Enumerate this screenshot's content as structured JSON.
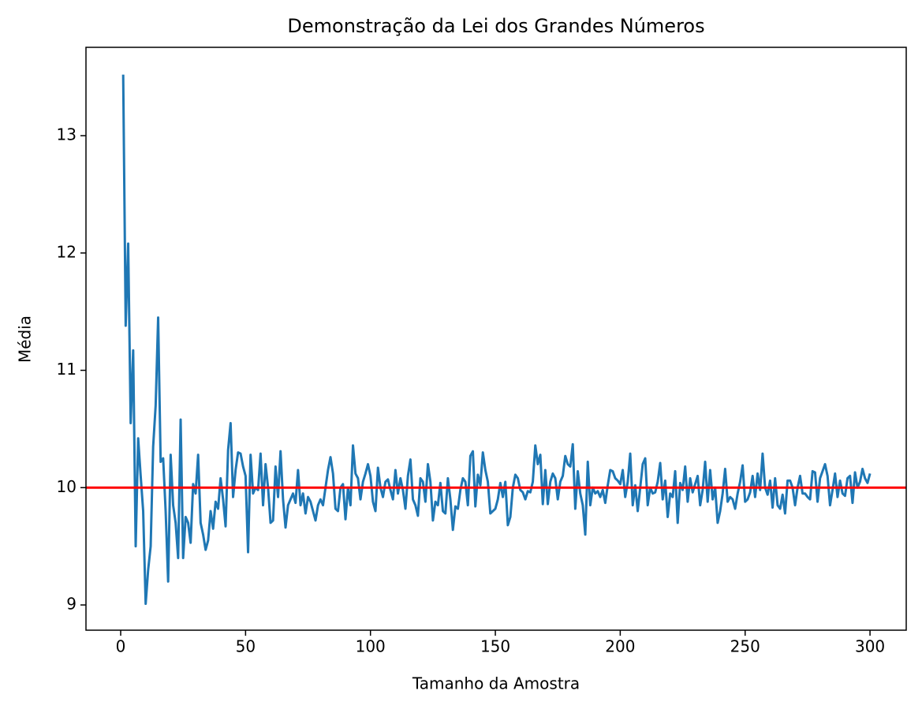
{
  "chart_data": {
    "type": "line",
    "title": "Demonstração da Lei dos Grandes Números",
    "x_label": "Tamanho da Amostra",
    "y_label": "Média",
    "x": [
      1,
      2,
      3,
      4,
      5,
      6,
      7,
      8,
      9,
      10,
      11,
      12,
      13,
      14,
      15,
      16,
      17,
      18,
      19,
      20,
      21,
      22,
      23,
      24,
      25,
      26,
      27,
      28,
      29,
      30,
      31,
      32,
      33,
      34,
      35,
      36,
      37,
      38,
      39,
      40,
      41,
      42,
      43,
      44,
      45,
      46,
      47,
      48,
      49,
      50,
      51,
      52,
      53,
      54,
      55,
      56,
      57,
      58,
      59,
      60,
      61,
      62,
      63,
      64,
      65,
      66,
      67,
      68,
      69,
      70,
      71,
      72,
      73,
      74,
      75,
      76,
      77,
      78,
      79,
      80,
      81,
      82,
      83,
      84,
      85,
      86,
      87,
      88,
      89,
      90,
      91,
      92,
      93,
      94,
      95,
      96,
      97,
      98,
      99,
      100,
      101,
      102,
      103,
      104,
      105,
      106,
      107,
      108,
      109,
      110,
      111,
      112,
      113,
      114,
      115,
      116,
      117,
      118,
      119,
      120,
      121,
      122,
      123,
      124,
      125,
      126,
      127,
      128,
      129,
      130,
      131,
      132,
      133,
      134,
      135,
      136,
      137,
      138,
      139,
      140,
      141,
      142,
      143,
      144,
      145,
      146,
      147,
      148,
      149,
      150,
      151,
      152,
      153,
      154,
      155,
      156,
      157,
      158,
      159,
      160,
      161,
      162,
      163,
      164,
      165,
      166,
      167,
      168,
      169,
      170,
      171,
      172,
      173,
      174,
      175,
      176,
      177,
      178,
      179,
      180,
      181,
      182,
      183,
      184,
      185,
      186,
      187,
      188,
      189,
      190,
      191,
      192,
      193,
      194,
      195,
      196,
      197,
      198,
      199,
      200,
      201,
      202,
      203,
      204,
      205,
      206,
      207,
      208,
      209,
      210,
      211,
      212,
      213,
      214,
      215,
      216,
      217,
      218,
      219,
      220,
      221,
      222,
      223,
      224,
      225,
      226,
      227,
      228,
      229,
      230,
      231,
      232,
      233,
      234,
      235,
      236,
      237,
      238,
      239,
      240,
      241,
      242,
      243,
      244,
      245,
      246,
      247,
      248,
      249,
      250,
      251,
      252,
      253,
      254,
      255,
      256,
      257,
      258,
      259,
      260,
      261,
      262,
      263,
      264,
      265,
      266,
      267,
      268,
      269,
      270,
      271,
      272,
      273,
      274,
      275,
      276,
      277,
      278,
      279,
      280,
      281,
      282,
      283,
      284,
      285,
      286,
      287,
      288,
      289,
      290,
      291,
      292,
      293,
      294,
      295,
      296,
      297,
      298,
      299,
      300
    ],
    "series": [
      {
        "color": "#1f77b4",
        "values": [
          13.52,
          11.38,
          12.08,
          10.55,
          11.17,
          9.5,
          10.42,
          10.1,
          9.8,
          9.01,
          9.3,
          9.5,
          10.35,
          10.7,
          11.45,
          10.22,
          10.25,
          9.8,
          9.2,
          10.28,
          9.85,
          9.7,
          9.4,
          10.58,
          9.4,
          9.75,
          9.7,
          9.53,
          10.03,
          9.95,
          10.28,
          9.7,
          9.6,
          9.47,
          9.55,
          9.8,
          9.65,
          9.88,
          9.82,
          10.08,
          9.9,
          9.67,
          10.32,
          10.55,
          9.92,
          10.15,
          10.3,
          10.29,
          10.18,
          10.1,
          9.45,
          10.28,
          9.95,
          10.0,
          9.98,
          10.29,
          9.85,
          10.2,
          10.0,
          9.7,
          9.72,
          10.18,
          9.92,
          10.31,
          9.9,
          9.66,
          9.85,
          9.9,
          9.95,
          9.87,
          10.15,
          9.85,
          9.95,
          9.78,
          9.92,
          9.88,
          9.8,
          9.72,
          9.85,
          9.9,
          9.85,
          10.0,
          10.15,
          10.26,
          10.12,
          9.82,
          9.8,
          10.0,
          10.03,
          9.73,
          10.0,
          9.85,
          10.36,
          10.12,
          10.08,
          9.9,
          10.05,
          10.12,
          10.2,
          10.1,
          9.88,
          9.8,
          10.17,
          10.0,
          9.92,
          10.05,
          10.07,
          9.98,
          9.9,
          10.15,
          9.95,
          10.08,
          9.98,
          9.82,
          10.1,
          10.24,
          9.9,
          9.85,
          9.76,
          10.08,
          10.05,
          9.88,
          10.2,
          10.05,
          9.72,
          9.88,
          9.85,
          10.04,
          9.8,
          9.78,
          10.08,
          9.9,
          9.64,
          9.84,
          9.82,
          9.98,
          10.08,
          10.05,
          9.85,
          10.27,
          10.31,
          9.84,
          10.11,
          10.02,
          10.3,
          10.15,
          10.05,
          9.78,
          9.8,
          9.82,
          9.9,
          10.04,
          9.92,
          10.05,
          9.68,
          9.75,
          10.0,
          10.11,
          10.08,
          9.98,
          9.96,
          9.9,
          9.97,
          9.96,
          10.05,
          10.36,
          10.2,
          10.28,
          9.86,
          10.15,
          9.86,
          10.05,
          10.12,
          10.08,
          9.9,
          10.05,
          10.1,
          10.27,
          10.2,
          10.18,
          10.37,
          9.82,
          10.14,
          9.95,
          9.85,
          9.6,
          10.22,
          9.85,
          10.0,
          9.95,
          9.97,
          9.92,
          9.98,
          9.87,
          10.02,
          10.15,
          10.14,
          10.08,
          10.06,
          10.03,
          10.15,
          9.92,
          10.05,
          10.29,
          9.85,
          10.02,
          9.8,
          10.0,
          10.2,
          10.25,
          9.85,
          10.0,
          9.95,
          9.96,
          10.05,
          10.21,
          9.9,
          10.06,
          9.75,
          9.95,
          9.92,
          10.14,
          9.7,
          10.04,
          9.98,
          10.18,
          9.88,
          10.08,
          9.96,
          10.03,
          10.1,
          9.85,
          9.98,
          10.22,
          9.88,
          10.15,
          9.9,
          10.0,
          9.7,
          9.8,
          9.95,
          10.16,
          9.88,
          9.92,
          9.9,
          9.82,
          9.95,
          10.05,
          10.19,
          9.88,
          9.9,
          9.96,
          10.1,
          9.92,
          10.12,
          9.98,
          10.29,
          10.0,
          9.94,
          10.06,
          9.83,
          10.08,
          9.85,
          9.82,
          9.94,
          9.78,
          10.06,
          10.06,
          10.0,
          9.85,
          10.0,
          10.1,
          9.95,
          9.95,
          9.92,
          9.9,
          10.14,
          10.13,
          9.88,
          10.08,
          10.14,
          10.2,
          10.1,
          9.85,
          9.98,
          10.12,
          9.92,
          10.06,
          9.95,
          9.93,
          10.08,
          10.1,
          9.87,
          10.13,
          10.0,
          10.05,
          10.16,
          10.08,
          10.04,
          10.12
        ]
      }
    ],
    "hline": {
      "value": 10,
      "color": "#ff0000"
    },
    "xlim": [
      -13.9,
      314.5
    ],
    "xticks": [
      0,
      50,
      100,
      150,
      200,
      250,
      300
    ],
    "ylim": [
      8.785,
      13.753
    ],
    "yticks": [
      9,
      10,
      11,
      12,
      13
    ]
  }
}
